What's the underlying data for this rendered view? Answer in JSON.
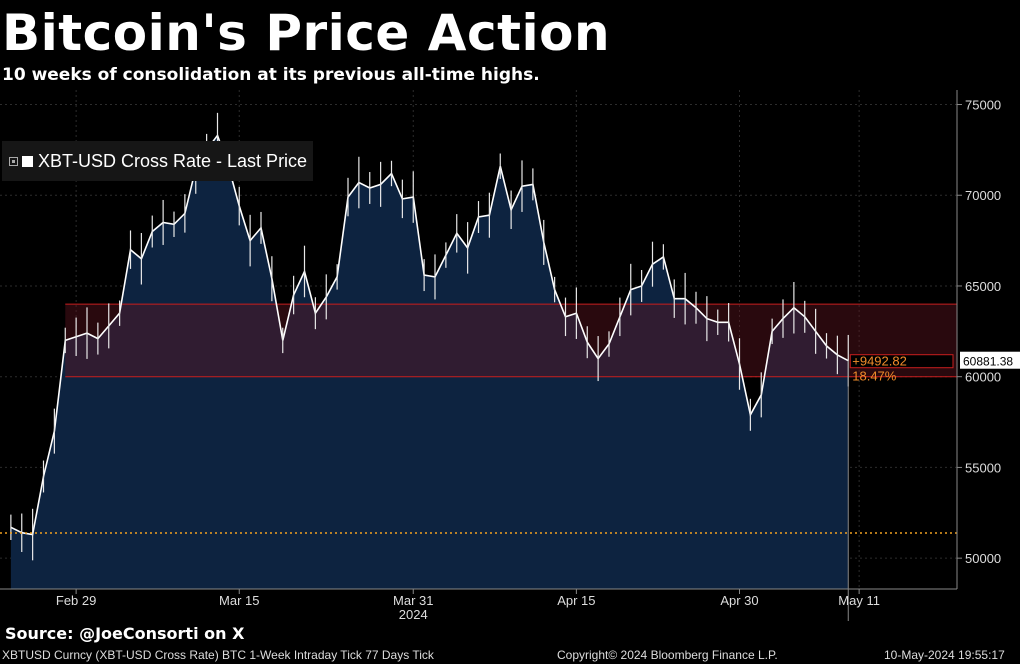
{
  "title": "Bitcoin's Price Action",
  "subtitle": "10 weeks of consolidation at its previous all-time highs.",
  "source": "Source: @JoeConsorti on X",
  "footer": {
    "left": "XBTUSD Curncy (XBT-USD Cross Rate) BTC 1-Week Intraday Tick 77 Days  Tick",
    "center": "Copyright© 2024 Bloomberg Finance L.P.",
    "right": "10-May-2024 19:55:17"
  },
  "chart_data": {
    "type": "area",
    "series": [
      {
        "name": "XBT-USD Cross Rate - Last Price",
        "color": "#ffffff",
        "fill": "#0d2340",
        "x": [
          "2024-02-23",
          "2024-02-24",
          "2024-02-25",
          "2024-02-26",
          "2024-02-27",
          "2024-02-28",
          "2024-02-29",
          "2024-03-01",
          "2024-03-02",
          "2024-03-03",
          "2024-03-04",
          "2024-03-05",
          "2024-03-06",
          "2024-03-07",
          "2024-03-08",
          "2024-03-09",
          "2024-03-10",
          "2024-03-11",
          "2024-03-12",
          "2024-03-13",
          "2024-03-14",
          "2024-03-15",
          "2024-03-16",
          "2024-03-17",
          "2024-03-18",
          "2024-03-19",
          "2024-03-20",
          "2024-03-21",
          "2024-03-22",
          "2024-03-23",
          "2024-03-24",
          "2024-03-25",
          "2024-03-26",
          "2024-03-27",
          "2024-03-28",
          "2024-03-29",
          "2024-03-30",
          "2024-03-31",
          "2024-04-01",
          "2024-04-02",
          "2024-04-03",
          "2024-04-04",
          "2024-04-05",
          "2024-04-06",
          "2024-04-07",
          "2024-04-08",
          "2024-04-09",
          "2024-04-10",
          "2024-04-11",
          "2024-04-12",
          "2024-04-13",
          "2024-04-14",
          "2024-04-15",
          "2024-04-16",
          "2024-04-17",
          "2024-04-18",
          "2024-04-19",
          "2024-04-20",
          "2024-04-21",
          "2024-04-22",
          "2024-04-23",
          "2024-04-24",
          "2024-04-25",
          "2024-04-26",
          "2024-04-27",
          "2024-04-28",
          "2024-04-29",
          "2024-04-30",
          "2024-05-01",
          "2024-05-02",
          "2024-05-03",
          "2024-05-04",
          "2024-05-05",
          "2024-05-06",
          "2024-05-07",
          "2024-05-08",
          "2024-05-09",
          "2024-05-10"
        ],
        "values": [
          51700,
          51400,
          51300,
          54500,
          57000,
          62000,
          62200,
          62400,
          62100,
          62800,
          63500,
          67000,
          66500,
          68000,
          68500,
          68400,
          69000,
          71500,
          72500,
          73300,
          71600,
          69400,
          67500,
          68200,
          65400,
          62000,
          64500,
          65800,
          63500,
          64400,
          65500,
          69900,
          70700,
          70400,
          70600,
          71200,
          69800,
          69900,
          65600,
          65500,
          66700,
          67900,
          67100,
          68800,
          68900,
          71600,
          69200,
          70500,
          70600,
          67400,
          64800,
          63300,
          63500,
          61900,
          61000,
          61800,
          63300,
          64800,
          65000,
          66200,
          66600,
          64300,
          64300,
          63800,
          63200,
          63000,
          63000,
          60700,
          57900,
          59000,
          62500,
          63200,
          63800,
          63300,
          62500,
          61700,
          61200,
          60881
        ]
      }
    ],
    "x_ticks": [
      "Feb 29",
      "Mar 15",
      "Mar 31",
      "Apr 15",
      "Apr 30",
      "May 11"
    ],
    "x_axis_year": "2024",
    "y_ticks": [
      50000,
      55000,
      60000,
      65000,
      70000,
      75000
    ],
    "ylim": [
      48300,
      75800
    ],
    "grid": true,
    "legend_position": "top-left",
    "consolidation_band": {
      "low": 60000,
      "high": 64000,
      "color": "#c81e1e"
    },
    "reference_line": {
      "value": 51389,
      "color": "#f0a020",
      "style": "dotted"
    },
    "last_price_label": "60881.38",
    "change_label": "+9492.82",
    "change_pct_label": "18.47%"
  }
}
